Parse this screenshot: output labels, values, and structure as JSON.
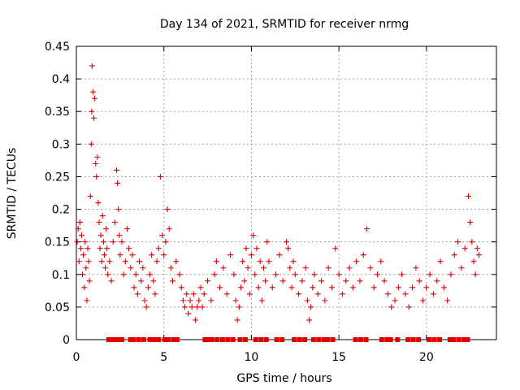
{
  "chart_data": {
    "type": "scatter",
    "title": "Day 134 of 2021, SRMTID for receiver nrmg",
    "xlabel": "GPS time / hours",
    "ylabel": "SRMTID / TECUs",
    "xlim": [
      0,
      24
    ],
    "ylim": [
      0,
      0.45
    ],
    "xticks": [
      0,
      5,
      10,
      15,
      20
    ],
    "xtick_labels": [
      "0",
      "5",
      "10",
      "15",
      "20"
    ],
    "yticks": [
      0,
      0.05,
      0.1,
      0.15,
      0.2,
      0.25,
      0.3,
      0.35,
      0.4,
      0.45
    ],
    "ytick_labels": [
      "0",
      "0.05",
      "0.1",
      "0.15",
      "0.2",
      "0.25",
      "0.3",
      "0.35",
      "0.4",
      "0.45"
    ],
    "grid": true,
    "marker": "plus",
    "color": "#e00000",
    "series": [
      {
        "name": "SRMTID",
        "points": [
          [
            0.05,
            0.15
          ],
          [
            0.1,
            0.17
          ],
          [
            0.15,
            0.12
          ],
          [
            0.2,
            0.18
          ],
          [
            0.25,
            0.14
          ],
          [
            0.3,
            0.16
          ],
          [
            0.35,
            0.1
          ],
          [
            0.4,
            0.13
          ],
          [
            0.45,
            0.08
          ],
          [
            0.5,
            0.15
          ],
          [
            0.55,
            0.11
          ],
          [
            0.6,
            0.06
          ],
          [
            0.65,
            0.14
          ],
          [
            0.7,
            0.12
          ],
          [
            0.75,
            0.09
          ],
          [
            0.8,
            0.22
          ],
          [
            0.85,
            0.3
          ],
          [
            0.88,
            0.35
          ],
          [
            0.9,
            0.42
          ],
          [
            0.95,
            0.38
          ],
          [
            1.0,
            0.34
          ],
          [
            1.05,
            0.37
          ],
          [
            1.1,
            0.27
          ],
          [
            1.15,
            0.25
          ],
          [
            1.2,
            0.28
          ],
          [
            1.25,
            0.21
          ],
          [
            1.3,
            0.18
          ],
          [
            1.35,
            0.14
          ],
          [
            1.4,
            0.16
          ],
          [
            1.45,
            0.12
          ],
          [
            1.5,
            0.19
          ],
          [
            1.55,
            0.15
          ],
          [
            1.6,
            0.13
          ],
          [
            1.65,
            0.11
          ],
          [
            1.7,
            0.17
          ],
          [
            1.75,
            0.14
          ],
          [
            1.8,
            0.1
          ],
          [
            1.9,
            0.12
          ],
          [
            2.0,
            0.09
          ],
          [
            2.1,
            0.15
          ],
          [
            2.2,
            0.18
          ],
          [
            2.3,
            0.26
          ],
          [
            2.35,
            0.24
          ],
          [
            2.4,
            0.2
          ],
          [
            2.45,
            0.16
          ],
          [
            2.5,
            0.13
          ],
          [
            2.6,
            0.15
          ],
          [
            2.7,
            0.1
          ],
          [
            2.8,
            0.12
          ],
          [
            2.9,
            0.17
          ],
          [
            3.0,
            0.14
          ],
          [
            3.1,
            0.11
          ],
          [
            3.2,
            0.13
          ],
          [
            3.3,
            0.08
          ],
          [
            3.4,
            0.1
          ],
          [
            3.5,
            0.07
          ],
          [
            3.6,
            0.12
          ],
          [
            3.7,
            0.09
          ],
          [
            3.8,
            0.11
          ],
          [
            3.9,
            0.06
          ],
          [
            4.0,
            0.05
          ],
          [
            4.1,
            0.08
          ],
          [
            4.2,
            0.1
          ],
          [
            4.3,
            0.13
          ],
          [
            4.4,
            0.09
          ],
          [
            4.5,
            0.07
          ],
          [
            4.6,
            0.12
          ],
          [
            4.7,
            0.14
          ],
          [
            4.8,
            0.25
          ],
          [
            4.9,
            0.16
          ],
          [
            5.0,
            0.13
          ],
          [
            5.1,
            0.15
          ],
          [
            5.2,
            0.2
          ],
          [
            5.3,
            0.17
          ],
          [
            5.4,
            0.11
          ],
          [
            5.5,
            0.09
          ],
          [
            5.7,
            0.12
          ],
          [
            5.9,
            0.1
          ],
          [
            6.0,
            0.08
          ],
          [
            6.1,
            0.06
          ],
          [
            6.2,
            0.05
          ],
          [
            6.3,
            0.07
          ],
          [
            6.4,
            0.04
          ],
          [
            6.5,
            0.06
          ],
          [
            6.6,
            0.05
          ],
          [
            6.7,
            0.07
          ],
          [
            6.8,
            0.03
          ],
          [
            6.9,
            0.05
          ],
          [
            7.0,
            0.06
          ],
          [
            7.1,
            0.08
          ],
          [
            7.2,
            0.05
          ],
          [
            7.3,
            0.07
          ],
          [
            7.5,
            0.09
          ],
          [
            7.7,
            0.06
          ],
          [
            7.9,
            0.1
          ],
          [
            8.0,
            0.12
          ],
          [
            8.2,
            0.08
          ],
          [
            8.4,
            0.11
          ],
          [
            8.6,
            0.07
          ],
          [
            8.8,
            0.13
          ],
          [
            9.0,
            0.1
          ],
          [
            9.1,
            0.06
          ],
          [
            9.2,
            0.03
          ],
          [
            9.3,
            0.05
          ],
          [
            9.4,
            0.08
          ],
          [
            9.5,
            0.12
          ],
          [
            9.6,
            0.09
          ],
          [
            9.7,
            0.14
          ],
          [
            9.8,
            0.11
          ],
          [
            9.9,
            0.07
          ],
          [
            10.0,
            0.13
          ],
          [
            10.1,
            0.16
          ],
          [
            10.2,
            0.1
          ],
          [
            10.3,
            0.14
          ],
          [
            10.4,
            0.08
          ],
          [
            10.5,
            0.12
          ],
          [
            10.6,
            0.06
          ],
          [
            10.7,
            0.11
          ],
          [
            10.8,
            0.09
          ],
          [
            10.9,
            0.15
          ],
          [
            11.0,
            0.12
          ],
          [
            11.2,
            0.08
          ],
          [
            11.4,
            0.1
          ],
          [
            11.6,
            0.13
          ],
          [
            11.8,
            0.09
          ],
          [
            12.0,
            0.15
          ],
          [
            12.1,
            0.14
          ],
          [
            12.2,
            0.11
          ],
          [
            12.3,
            0.08
          ],
          [
            12.4,
            0.12
          ],
          [
            12.5,
            0.1
          ],
          [
            12.7,
            0.07
          ],
          [
            12.9,
            0.09
          ],
          [
            13.1,
            0.11
          ],
          [
            13.2,
            0.06
          ],
          [
            13.3,
            0.03
          ],
          [
            13.4,
            0.05
          ],
          [
            13.5,
            0.08
          ],
          [
            13.6,
            0.1
          ],
          [
            13.8,
            0.07
          ],
          [
            14.0,
            0.09
          ],
          [
            14.2,
            0.06
          ],
          [
            14.4,
            0.11
          ],
          [
            14.6,
            0.08
          ],
          [
            14.8,
            0.14
          ],
          [
            15.0,
            0.1
          ],
          [
            15.2,
            0.07
          ],
          [
            15.4,
            0.09
          ],
          [
            15.6,
            0.11
          ],
          [
            15.8,
            0.08
          ],
          [
            16.0,
            0.12
          ],
          [
            16.2,
            0.09
          ],
          [
            16.4,
            0.13
          ],
          [
            16.6,
            0.17
          ],
          [
            16.8,
            0.11
          ],
          [
            17.0,
            0.08
          ],
          [
            17.2,
            0.1
          ],
          [
            17.4,
            0.12
          ],
          [
            17.6,
            0.09
          ],
          [
            17.8,
            0.07
          ],
          [
            18.0,
            0.05
          ],
          [
            18.2,
            0.06
          ],
          [
            18.4,
            0.08
          ],
          [
            18.6,
            0.1
          ],
          [
            18.8,
            0.07
          ],
          [
            19.0,
            0.05
          ],
          [
            19.2,
            0.08
          ],
          [
            19.4,
            0.11
          ],
          [
            19.6,
            0.09
          ],
          [
            19.8,
            0.06
          ],
          [
            20.0,
            0.08
          ],
          [
            20.2,
            0.1
          ],
          [
            20.4,
            0.07
          ],
          [
            20.6,
            0.09
          ],
          [
            20.8,
            0.12
          ],
          [
            21.0,
            0.08
          ],
          [
            21.2,
            0.06
          ],
          [
            21.4,
            0.1
          ],
          [
            21.6,
            0.13
          ],
          [
            21.8,
            0.15
          ],
          [
            22.0,
            0.11
          ],
          [
            22.2,
            0.14
          ],
          [
            22.4,
            0.22
          ],
          [
            22.5,
            0.18
          ],
          [
            22.6,
            0.15
          ],
          [
            22.7,
            0.12
          ],
          [
            22.8,
            0.1
          ],
          [
            22.9,
            0.14
          ],
          [
            23.0,
            0.13
          ]
        ]
      }
    ],
    "zero_points_x": [
      1.85,
      1.95,
      2.05,
      2.2,
      2.45,
      2.6,
      3.1,
      3.25,
      3.55,
      3.85,
      4.2,
      4.45,
      4.7,
      5.05,
      5.25,
      5.55,
      5.75,
      7.35,
      7.55,
      7.75,
      8.05,
      8.35,
      8.65,
      8.95,
      9.35,
      9.65,
      10.25,
      10.55,
      10.85,
      11.45,
      11.75,
      12.45,
      12.75,
      13.05,
      13.55,
      13.85,
      14.15,
      14.35,
      14.65,
      15.95,
      16.25,
      16.55,
      17.45,
      17.75,
      17.95,
      18.35,
      18.95,
      19.25,
      19.55,
      20.15,
      20.45,
      20.75,
      21.35,
      21.55,
      21.85,
      22.15,
      22.35
    ]
  }
}
